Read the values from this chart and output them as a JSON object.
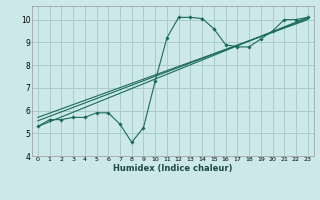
{
  "xlabel": "Humidex (Indice chaleur)",
  "ylabel": "",
  "bg_color": "#cce8e8",
  "grid_color": "#aacccc",
  "line_color": "#1a6b5a",
  "xlim": [
    -0.5,
    23.5
  ],
  "ylim": [
    4,
    10.6
  ],
  "yticks": [
    4,
    5,
    6,
    7,
    8,
    9,
    10
  ],
  "xticks": [
    0,
    1,
    2,
    3,
    4,
    5,
    6,
    7,
    8,
    9,
    10,
    11,
    12,
    13,
    14,
    15,
    16,
    17,
    18,
    19,
    20,
    21,
    22,
    23
  ],
  "series": [
    {
      "x": [
        0,
        1,
        2,
        3,
        4,
        5,
        6,
        7,
        8,
        9,
        10,
        11,
        12,
        13,
        14,
        15,
        16,
        17,
        18,
        19,
        20,
        21,
        22,
        23
      ],
      "y": [
        5.3,
        5.6,
        5.6,
        5.7,
        5.7,
        5.9,
        5.9,
        5.4,
        4.6,
        5.25,
        7.3,
        9.2,
        10.1,
        10.1,
        10.05,
        9.6,
        8.9,
        8.8,
        8.8,
        9.15,
        9.5,
        10.0,
        10.0,
        10.1
      ],
      "has_markers": true
    },
    {
      "x": [
        0,
        23
      ],
      "y": [
        5.3,
        10.1
      ],
      "has_markers": false
    },
    {
      "x": [
        0,
        23
      ],
      "y": [
        5.55,
        10.05
      ],
      "has_markers": false
    },
    {
      "x": [
        0,
        23
      ],
      "y": [
        5.7,
        10.0
      ],
      "has_markers": false
    }
  ]
}
